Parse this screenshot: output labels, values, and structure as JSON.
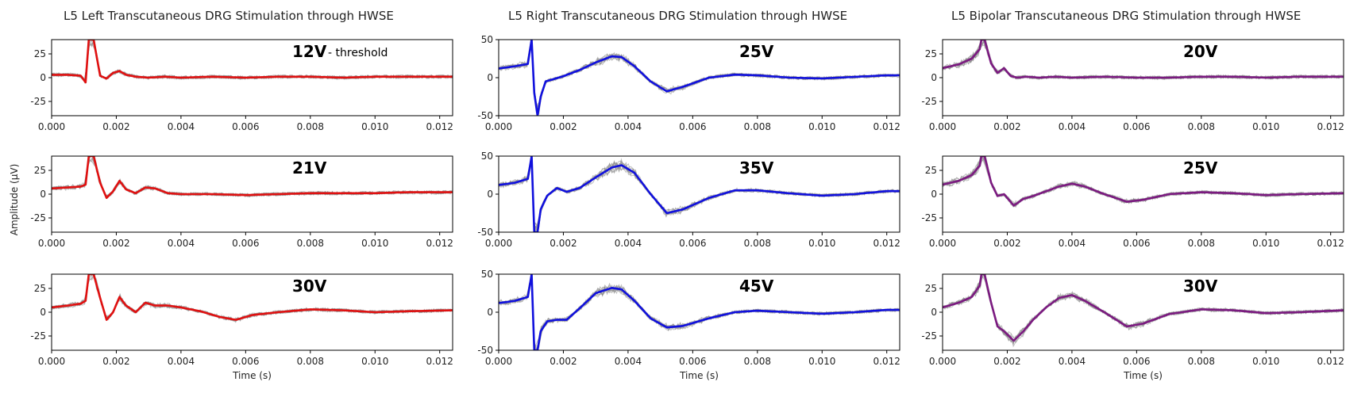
{
  "figure": {
    "ylabel": "Amplitude (µV)",
    "columns": [
      {
        "title": "L5 Left Transcutaneous DRG Stimulation through HWSE",
        "color": "#e01010"
      },
      {
        "title": "L5 Right Transcutaneous DRG Stimulation through HWSE",
        "color": "#1010dd"
      },
      {
        "title": "L5 Bipolar Transcutaneous DRG Stimulation through HWSE",
        "color": "#7b1a80"
      }
    ],
    "trial_color": "#8a8a8a"
  },
  "chart_data": [
    {
      "type": "line",
      "panel": "left-1",
      "label": "12V",
      "annotation": "- threshold",
      "xlabel": "",
      "ylabel": "",
      "xlim": [
        0,
        0.0124
      ],
      "ylim": [
        -40,
        40
      ],
      "xticks": [
        "0.000",
        "0.002",
        "0.004",
        "0.006",
        "0.008",
        "0.010",
        "0.012"
      ],
      "yticks": [
        "25",
        "0",
        "-25"
      ],
      "series": [
        {
          "x": [
            0,
            0.0005,
            0.0009,
            0.00105,
            0.00115,
            0.0013,
            0.0015,
            0.0017,
            0.0019,
            0.0021,
            0.0023,
            0.0026,
            0.003,
            0.0035,
            0.004,
            0.005,
            0.006,
            0.007,
            0.008,
            0.009,
            0.01,
            0.011,
            0.0124
          ],
          "y": [
            3,
            3,
            2,
            -5,
            40,
            40,
            2,
            -1,
            5,
            7,
            3,
            1,
            0,
            1,
            0,
            1,
            0,
            1,
            1,
            0,
            1,
            1,
            1
          ]
        }
      ]
    },
    {
      "type": "line",
      "panel": "left-2",
      "label": "21V",
      "xlabel": "",
      "ylabel": "",
      "xlim": [
        0,
        0.0124
      ],
      "ylim": [
        -40,
        40
      ],
      "xticks": [
        "0.000",
        "0.002",
        "0.004",
        "0.006",
        "0.008",
        "0.010",
        "0.012"
      ],
      "yticks": [
        "25",
        "0",
        "-25"
      ],
      "series": [
        {
          "x": [
            0,
            0.0005,
            0.0009,
            0.00105,
            0.00115,
            0.0013,
            0.0015,
            0.0017,
            0.0019,
            0.0021,
            0.0023,
            0.0026,
            0.0029,
            0.0032,
            0.0036,
            0.004,
            0.005,
            0.006,
            0.007,
            0.008,
            0.009,
            0.01,
            0.011,
            0.0124
          ],
          "y": [
            6,
            7,
            8,
            10,
            40,
            40,
            12,
            -4,
            3,
            14,
            5,
            1,
            7,
            6,
            1,
            0,
            0,
            -1,
            0,
            1,
            1,
            1,
            2,
            2
          ]
        }
      ]
    },
    {
      "type": "line",
      "panel": "left-3",
      "label": "30V",
      "xlabel": "Time (s)",
      "ylabel": "",
      "xlim": [
        0,
        0.0124
      ],
      "ylim": [
        -40,
        40
      ],
      "xticks": [
        "0.000",
        "0.002",
        "0.004",
        "0.006",
        "0.008",
        "0.010",
        "0.012"
      ],
      "yticks": [
        "25",
        "0",
        "-25"
      ],
      "series": [
        {
          "x": [
            0,
            0.0005,
            0.0009,
            0.00105,
            0.00115,
            0.0013,
            0.0015,
            0.0017,
            0.0019,
            0.0021,
            0.0023,
            0.0026,
            0.0029,
            0.0032,
            0.0036,
            0.004,
            0.0046,
            0.0052,
            0.0057,
            0.0062,
            0.007,
            0.008,
            0.009,
            0.01,
            0.011,
            0.0124
          ],
          "y": [
            5,
            7,
            9,
            12,
            40,
            40,
            15,
            -8,
            0,
            16,
            7,
            0,
            10,
            7,
            7,
            5,
            1,
            -5,
            -8,
            -3,
            0,
            3,
            2,
            0,
            1,
            2
          ]
        }
      ]
    },
    {
      "type": "line",
      "panel": "right-1",
      "label": "25V",
      "xlabel": "",
      "ylabel": "",
      "xlim": [
        0,
        0.0124
      ],
      "ylim": [
        -50,
        50
      ],
      "xticks": [
        "0.000",
        "0.002",
        "0.004",
        "0.006",
        "0.008",
        "0.010",
        "0.012"
      ],
      "yticks": [
        "50",
        "0",
        "-50"
      ],
      "series": [
        {
          "x": [
            0,
            0.0005,
            0.0009,
            0.00102,
            0.0011,
            0.0012,
            0.0013,
            0.00145,
            0.0017,
            0.002,
            0.0025,
            0.003,
            0.0035,
            0.0038,
            0.0042,
            0.0047,
            0.0052,
            0.0057,
            0.0065,
            0.0073,
            0.008,
            0.009,
            0.01,
            0.011,
            0.012,
            0.0124
          ],
          "y": [
            12,
            15,
            18,
            50,
            -20,
            -50,
            -25,
            -5,
            -2,
            2,
            10,
            20,
            28,
            27,
            15,
            -5,
            -18,
            -12,
            0,
            4,
            3,
            0,
            -1,
            1,
            3,
            3
          ]
        }
      ]
    },
    {
      "type": "line",
      "panel": "right-2",
      "label": "35V",
      "xlabel": "",
      "ylabel": "",
      "xlim": [
        0,
        0.0124
      ],
      "ylim": [
        -50,
        50
      ],
      "xticks": [
        "0.000",
        "0.002",
        "0.004",
        "0.006",
        "0.008",
        "0.010",
        "0.012"
      ],
      "yticks": [
        "50",
        "0",
        "-50"
      ],
      "series": [
        {
          "x": [
            0,
            0.0005,
            0.0009,
            0.00102,
            0.0011,
            0.0012,
            0.0013,
            0.0015,
            0.0018,
            0.0021,
            0.0025,
            0.003,
            0.0035,
            0.0038,
            0.0042,
            0.0047,
            0.0052,
            0.0057,
            0.0065,
            0.0073,
            0.008,
            0.009,
            0.01,
            0.011,
            0.012,
            0.0124
          ],
          "y": [
            12,
            15,
            20,
            50,
            -50,
            -50,
            -20,
            -2,
            8,
            3,
            8,
            22,
            35,
            38,
            28,
            0,
            -25,
            -20,
            -5,
            5,
            5,
            1,
            -2,
            0,
            4,
            4
          ]
        }
      ]
    },
    {
      "type": "line",
      "panel": "right-3",
      "label": "45V",
      "xlabel": "Time (s)",
      "ylabel": "",
      "xlim": [
        0,
        0.0124
      ],
      "ylim": [
        -50,
        50
      ],
      "xticks": [
        "0.000",
        "0.002",
        "0.004",
        "0.006",
        "0.008",
        "0.010",
        "0.012"
      ],
      "yticks": [
        "50",
        "0",
        "-50"
      ],
      "series": [
        {
          "x": [
            0,
            0.0005,
            0.0009,
            0.00102,
            0.0011,
            0.0012,
            0.0013,
            0.0015,
            0.0018,
            0.0021,
            0.0025,
            0.003,
            0.0035,
            0.0038,
            0.0042,
            0.0047,
            0.0052,
            0.0057,
            0.0065,
            0.0073,
            0.008,
            0.009,
            0.01,
            0.011,
            0.012,
            0.0124
          ],
          "y": [
            12,
            15,
            20,
            50,
            -50,
            -50,
            -25,
            -12,
            -10,
            -10,
            5,
            25,
            32,
            30,
            15,
            -8,
            -20,
            -18,
            -8,
            0,
            2,
            0,
            -2,
            0,
            3,
            3
          ]
        }
      ]
    },
    {
      "type": "line",
      "panel": "bipolar-1",
      "label": "20V",
      "xlabel": "",
      "ylabel": "",
      "xlim": [
        0,
        0.0124
      ],
      "ylim": [
        -40,
        40
      ],
      "xticks": [
        "0.000",
        "0.002",
        "0.004",
        "0.006",
        "0.008",
        "0.010",
        "0.012"
      ],
      "yticks": [
        "25",
        "0",
        "-25"
      ],
      "series": [
        {
          "x": [
            0,
            0.0005,
            0.0009,
            0.00115,
            0.0012,
            0.0013,
            0.0015,
            0.0017,
            0.0019,
            0.0021,
            0.0023,
            0.0026,
            0.003,
            0.0035,
            0.004,
            0.005,
            0.006,
            0.007,
            0.008,
            0.009,
            0.01,
            0.011,
            0.0124
          ],
          "y": [
            10,
            14,
            20,
            30,
            40,
            40,
            15,
            5,
            10,
            2,
            0,
            1,
            0,
            1,
            0,
            1,
            0,
            0,
            1,
            1,
            0,
            1,
            1
          ]
        }
      ]
    },
    {
      "type": "line",
      "panel": "bipolar-2",
      "label": "25V",
      "xlabel": "",
      "ylabel": "",
      "xlim": [
        0,
        0.0124
      ],
      "ylim": [
        -40,
        40
      ],
      "xticks": [
        "0.000",
        "0.002",
        "0.004",
        "0.006",
        "0.008",
        "0.010",
        "0.012"
      ],
      "yticks": [
        "25",
        "0",
        "-25"
      ],
      "series": [
        {
          "x": [
            0,
            0.0005,
            0.0009,
            0.00115,
            0.0012,
            0.0013,
            0.0015,
            0.0017,
            0.0019,
            0.0022,
            0.0025,
            0.0028,
            0.0032,
            0.0036,
            0.004,
            0.0044,
            0.005,
            0.0057,
            0.0062,
            0.007,
            0.008,
            0.009,
            0.01,
            0.011,
            0.0124
          ],
          "y": [
            10,
            14,
            20,
            30,
            40,
            40,
            12,
            -2,
            0,
            -12,
            -5,
            -2,
            3,
            8,
            11,
            8,
            0,
            -8,
            -6,
            0,
            2,
            1,
            -1,
            0,
            1
          ]
        }
      ]
    },
    {
      "type": "line",
      "panel": "bipolar-3",
      "label": "30V",
      "xlabel": "Time (s)",
      "ylabel": "",
      "xlim": [
        0,
        0.0124
      ],
      "ylim": [
        -40,
        40
      ],
      "xticks": [
        "0.000",
        "0.002",
        "0.004",
        "0.006",
        "0.008",
        "0.010",
        "0.012"
      ],
      "yticks": [
        "25",
        "0",
        "-25"
      ],
      "series": [
        {
          "x": [
            0,
            0.0005,
            0.0009,
            0.00115,
            0.0012,
            0.0013,
            0.0015,
            0.0017,
            0.0019,
            0.0022,
            0.0025,
            0.0028,
            0.0032,
            0.0036,
            0.004,
            0.0044,
            0.005,
            0.0057,
            0.0062,
            0.007,
            0.008,
            0.009,
            0.01,
            0.011,
            0.0124
          ],
          "y": [
            5,
            10,
            16,
            28,
            40,
            40,
            10,
            -15,
            -20,
            -30,
            -20,
            -8,
            5,
            15,
            18,
            12,
            0,
            -15,
            -12,
            -2,
            3,
            2,
            -1,
            0,
            2
          ]
        }
      ]
    }
  ]
}
